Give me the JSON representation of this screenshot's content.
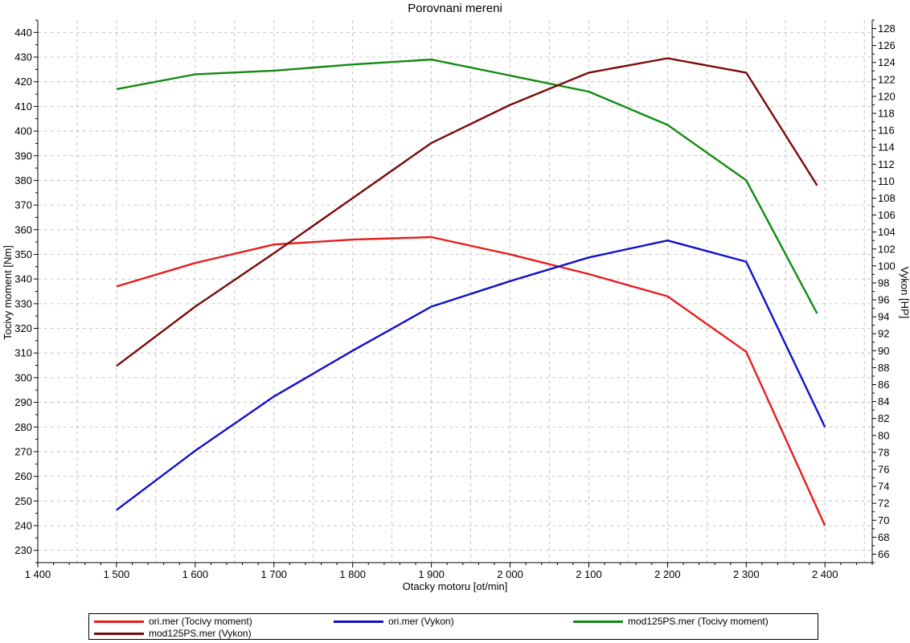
{
  "chart_data": {
    "type": "line",
    "title": "Porovnani mereni",
    "xlabel": "Otacky motoru [ot/min]",
    "ylabel": "Tocivy moment [Nm]",
    "y2label": "Vykon [HP]",
    "xlim": [
      1400,
      2460
    ],
    "ylim": [
      225,
      445
    ],
    "y2lim": [
      65,
      129
    ],
    "xticks": [
      1400,
      1500,
      1600,
      1700,
      1800,
      1900,
      2000,
      2100,
      2200,
      2300,
      2400
    ],
    "xtick_labels": [
      "1 400",
      "1 500",
      "1 600",
      "1 700",
      "1 800",
      "1 900",
      "2 000",
      "2 100",
      "2 200",
      "2 300",
      "2 400"
    ],
    "yticks": [
      230,
      240,
      250,
      260,
      270,
      280,
      290,
      300,
      310,
      320,
      330,
      340,
      350,
      360,
      370,
      380,
      390,
      400,
      410,
      420,
      430,
      440
    ],
    "y2ticks": [
      66,
      68,
      70,
      72,
      74,
      76,
      78,
      80,
      82,
      84,
      86,
      88,
      90,
      92,
      94,
      96,
      98,
      100,
      102,
      104,
      106,
      108,
      110,
      112,
      114,
      116,
      118,
      120,
      122,
      124,
      126,
      128
    ],
    "grid": true,
    "legend_position": "bottom",
    "series": [
      {
        "name": "ori.mer  (Tocivy moment)",
        "axis": "left",
        "color": "#e81c1c",
        "x": [
          1500,
          1600,
          1700,
          1800,
          1900,
          2000,
          2100,
          2200,
          2300,
          2400
        ],
        "y": [
          337,
          346.5,
          354,
          356,
          357,
          350,
          342,
          333,
          310.5,
          240
        ]
      },
      {
        "name": "ori.mer  (Vykon)",
        "axis": "right",
        "color": "#1010cc",
        "x": [
          1500,
          1600,
          1700,
          1800,
          1900,
          2000,
          2100,
          2200,
          2300,
          2400
        ],
        "y": [
          71.2,
          78.2,
          84.6,
          90.0,
          95.2,
          98.2,
          101.0,
          103.0,
          100.5,
          81.0
        ]
      },
      {
        "name": "mod125PS.mer  (Tocivy moment)",
        "axis": "left",
        "color": "#128a12",
        "x": [
          1500,
          1600,
          1700,
          1800,
          1900,
          2000,
          2100,
          2200,
          2300,
          2390
        ],
        "y": [
          417,
          423,
          424.5,
          427,
          429,
          422.5,
          416,
          402.5,
          380,
          326
        ]
      },
      {
        "name": "mod125PS.mer  (Vykon)",
        "axis": "right",
        "color": "#7a0a0a",
        "x": [
          1500,
          1600,
          1700,
          1800,
          1900,
          2000,
          2100,
          2200,
          2300,
          2390
        ],
        "y": [
          88.2,
          95.2,
          101.5,
          108.0,
          114.5,
          119.0,
          122.8,
          124.5,
          122.8,
          109.5
        ]
      }
    ]
  }
}
